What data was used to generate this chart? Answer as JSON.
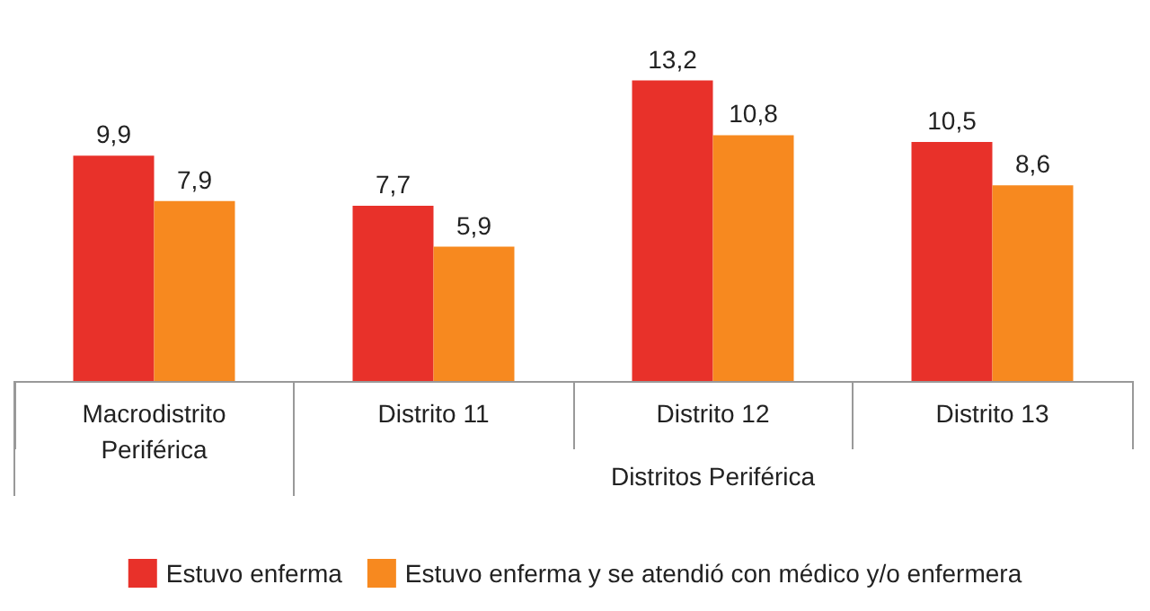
{
  "chart_data": {
    "type": "bar",
    "categories": [
      "Macrodistrito\nPeriférica",
      "Distrito 11",
      "Distrito 12",
      "Distrito 13"
    ],
    "series": [
      {
        "name": "Estuvo enferma",
        "color": "#e8312a",
        "values": [
          9.9,
          7.7,
          13.2,
          10.5
        ],
        "value_labels": [
          "9,9",
          "7,7",
          "13,2",
          "10,5"
        ]
      },
      {
        "name": "Estuvo enferma y se atendió con médico y/o enfermera",
        "color": "#f7891f",
        "values": [
          7.9,
          5.9,
          10.8,
          8.6
        ],
        "value_labels": [
          "7,9",
          "5,9",
          "10,8",
          "8,6"
        ]
      }
    ],
    "annotations": [
      "Distritos Periférica"
    ],
    "legend": "bottom"
  }
}
